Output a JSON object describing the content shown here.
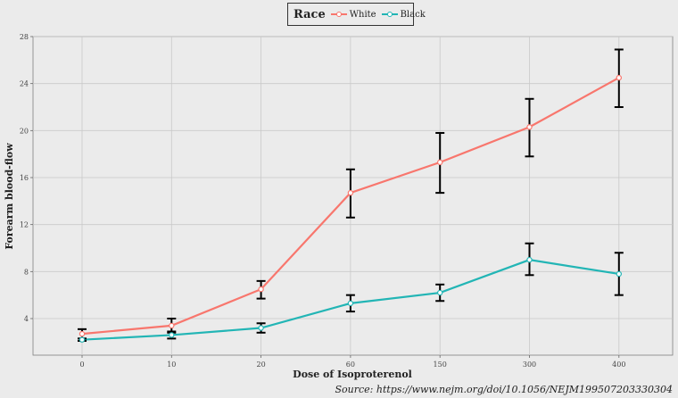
{
  "chart_data": {
    "type": "line",
    "xlabel": "Dose of Isoproterenol",
    "ylabel": "Forearm blood-flow",
    "categories": [
      "0",
      "10",
      "20",
      "60",
      "150",
      "300",
      "400"
    ],
    "ylim": [
      0,
      28
    ],
    "yticks": [
      4,
      8,
      12,
      16,
      20,
      24,
      28
    ],
    "grid": true,
    "legend": {
      "title": "Race",
      "placement": "top-center"
    },
    "series": [
      {
        "name": "White",
        "color": "#f8766d",
        "values": [
          2.7,
          3.4,
          6.5,
          14.7,
          17.3,
          20.3,
          24.5
        ],
        "err_low": [
          2.3,
          2.8,
          5.7,
          12.6,
          14.7,
          17.8,
          22.0
        ],
        "err_high": [
          3.1,
          4.0,
          7.2,
          16.7,
          19.8,
          22.7,
          26.9
        ]
      },
      {
        "name": "Black",
        "color": "#22b5b5",
        "values": [
          2.2,
          2.6,
          3.2,
          5.3,
          6.2,
          9.0,
          7.8
        ],
        "err_low": [
          2.1,
          2.3,
          2.8,
          4.6,
          5.5,
          7.7,
          6.0
        ],
        "err_high": [
          2.3,
          2.9,
          3.6,
          6.0,
          6.9,
          10.4,
          9.6
        ]
      }
    ]
  },
  "source": "Source: https://www.nejm.org/doi/10.1056/NEJM199507203330304"
}
